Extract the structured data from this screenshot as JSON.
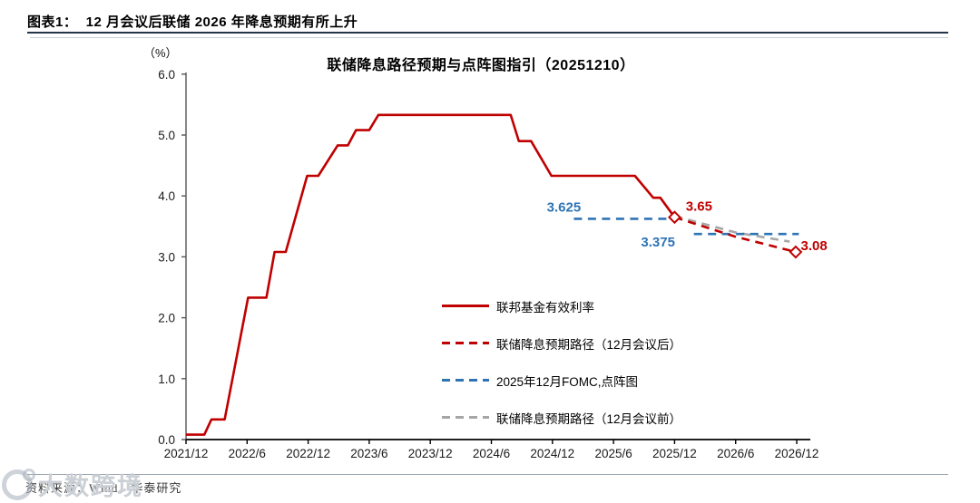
{
  "header": {
    "title": "图表1：  12 月会议后联储 2026 年降息预期有所上升"
  },
  "chart_data": {
    "type": "line",
    "title": "联储降息路径预期与点阵图指引（20251210）",
    "y_unit_label": "（%）",
    "ylim": [
      0,
      6
    ],
    "ytick_labels": [
      "0.0",
      "1.0",
      "2.0",
      "3.0",
      "4.0",
      "5.0",
      "6.0"
    ],
    "xtick_labels": [
      "2021/12",
      "2022/6",
      "2022/12",
      "2023/6",
      "2023/12",
      "2024/6",
      "2024/12",
      "2025/6",
      "2025/12",
      "2026/6",
      "2026/12"
    ],
    "x_unit": "months_since_2021_12",
    "x_months_per_tick": 6,
    "grid": false,
    "legend_position": "inside-center-left",
    "series": [
      {
        "name": "联邦基金有效利率",
        "color": "#C00000",
        "style": "solid",
        "segments": [
          [
            [
              0,
              0.08
            ],
            [
              1.8,
              0.08
            ],
            [
              2.5,
              0.33
            ],
            [
              3.8,
              0.33
            ],
            [
              6.1,
              2.33
            ],
            [
              7.9,
              2.33
            ],
            [
              8.7,
              3.08
            ],
            [
              9.8,
              3.08
            ],
            [
              11.9,
              4.33
            ],
            [
              13,
              4.33
            ],
            [
              14.9,
              4.83
            ],
            [
              15.9,
              4.83
            ],
            [
              16.7,
              5.08
            ],
            [
              18,
              5.08
            ],
            [
              18.9,
              5.33
            ],
            [
              31.9,
              5.33
            ],
            [
              32.7,
              4.9
            ],
            [
              33.9,
              4.9
            ],
            [
              35.9,
              4.33
            ],
            [
              44.1,
              4.33
            ],
            [
              45.9,
              3.97
            ],
            [
              46.6,
              3.97
            ],
            [
              48,
              3.65
            ]
          ]
        ],
        "markers": [
          [
            48,
            3.65
          ]
        ]
      },
      {
        "name": "联储降息预期路径（12月会议后）",
        "color": "#C00000",
        "style": "dashed",
        "segments": [
          [
            [
              48,
              3.65
            ],
            [
              54,
              3.33
            ],
            [
              59.9,
              3.08
            ]
          ]
        ],
        "markers": [
          [
            59.9,
            3.08
          ]
        ]
      },
      {
        "name": "2025年12月FOMC,点阵图",
        "color": "#2E74B5",
        "style": "dashed",
        "segments": [
          [
            [
              38.1,
              3.625
            ],
            [
              48.1,
              3.625
            ]
          ],
          [
            [
              49.9,
              3.375
            ],
            [
              60.2,
              3.375
            ]
          ]
        ],
        "markers": []
      },
      {
        "name": "联储降息预期路径（12月会议前）",
        "color": "#A6A6A6",
        "style": "dashed",
        "segments": [
          [
            [
              48,
              3.67
            ],
            [
              54,
              3.4
            ],
            [
              59.3,
              3.25
            ]
          ]
        ],
        "markers": []
      }
    ],
    "annotations": [
      {
        "text": "3.625",
        "color": "#2E74B5",
        "t": 38.8,
        "v": 3.625,
        "dy": -8,
        "anchor": "end"
      },
      {
        "text": "3.375",
        "color": "#2E74B5",
        "t": 44.7,
        "v": 3.375,
        "dy": 14,
        "anchor": "start"
      },
      {
        "text": "3.65",
        "color": "#C00000",
        "t": 49.1,
        "v": 3.65,
        "dy": -7,
        "anchor": "start"
      },
      {
        "text": "3.08",
        "color": "#C00000",
        "t": 60.4,
        "v": 3.08,
        "dy": -2,
        "anchor": "start"
      }
    ]
  },
  "footer": {
    "source_text": "资料来源：Wind，华泰研究",
    "watermark_text": "大数跨境"
  }
}
